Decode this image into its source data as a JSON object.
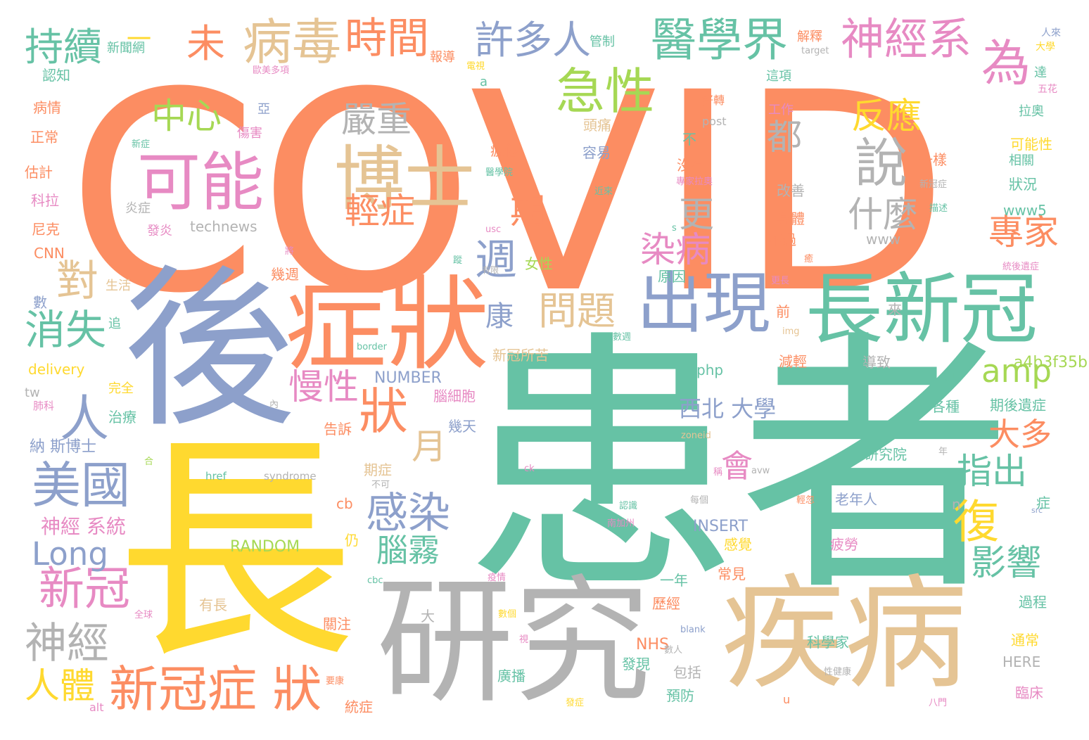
{
  "palette": {
    "orange": "#fc8d62",
    "teal": "#66c2a5",
    "blue": "#8da0cb",
    "pink": "#e78ac3",
    "green": "#a6d854",
    "yellow": "#ffd92f",
    "tan": "#e5c494",
    "gray": "#b3b3b3"
  },
  "words": [
    {
      "text": "COVID",
      "color": "orange"
    },
    {
      "text": "患者",
      "color": "teal"
    },
    {
      "text": "長",
      "color": "yellow"
    },
    {
      "text": "後",
      "color": "blue"
    },
    {
      "text": "研究",
      "color": "gray"
    },
    {
      "text": "疾病",
      "color": "tan"
    },
    {
      "text": "症狀",
      "color": "orange"
    },
    {
      "text": "長新冠",
      "color": "teal"
    },
    {
      "text": "出現",
      "color": "blue"
    },
    {
      "text": "博士",
      "color": "tan"
    },
    {
      "text": "可能",
      "color": "pink"
    },
    {
      "text": "新冠症 狀",
      "color": "orange"
    },
    {
      "text": "病毒",
      "color": "tan"
    },
    {
      "text": "醫學界",
      "color": "teal"
    },
    {
      "text": "神經系",
      "color": "pink"
    },
    {
      "text": "時間",
      "color": "orange"
    },
    {
      "text": "持續",
      "color": "teal"
    },
    {
      "text": "許多人",
      "color": "blue"
    },
    {
      "text": "急性",
      "color": "green"
    },
    {
      "text": "為",
      "color": "pink"
    },
    {
      "text": "說",
      "color": "gray"
    },
    {
      "text": "美國",
      "color": "blue"
    },
    {
      "text": "狀",
      "color": "orange"
    },
    {
      "text": "人",
      "color": "blue"
    },
    {
      "text": "對",
      "color": "tan"
    },
    {
      "text": "消失",
      "color": "teal"
    },
    {
      "text": "新冠",
      "color": "pink"
    },
    {
      "text": "神經",
      "color": "gray"
    },
    {
      "text": "感染",
      "color": "blue"
    },
    {
      "text": "復",
      "color": "yellow"
    },
    {
      "text": "週",
      "color": "blue"
    },
    {
      "text": "問題",
      "color": "tan"
    },
    {
      "text": "未",
      "color": "orange"
    },
    {
      "text": "中心",
      "color": "green"
    },
    {
      "text": "嚴重",
      "color": "gray"
    },
    {
      "text": "輕症",
      "color": "orange"
    },
    {
      "text": "反應",
      "color": "yellow"
    },
    {
      "text": "都",
      "color": "gray"
    },
    {
      "text": "什麼",
      "color": "gray"
    },
    {
      "text": "更",
      "color": "gray"
    },
    {
      "text": "期",
      "color": "orange"
    },
    {
      "text": "專家",
      "color": "orange"
    },
    {
      "text": "染病",
      "color": "pink"
    },
    {
      "text": "慢性",
      "color": "pink"
    },
    {
      "text": "康",
      "color": "blue"
    },
    {
      "text": "amp",
      "color": "green"
    },
    {
      "text": "西北 大學",
      "color": "blue"
    },
    {
      "text": "大多",
      "color": "orange"
    },
    {
      "text": "指出",
      "color": "teal"
    },
    {
      "text": "月",
      "color": "tan"
    },
    {
      "text": "會",
      "color": "pink"
    },
    {
      "text": "影響",
      "color": "teal"
    },
    {
      "text": "Long",
      "color": "blue"
    },
    {
      "text": "人體",
      "color": "yellow"
    },
    {
      "text": "腦霧",
      "color": "teal"
    },
    {
      "text": "一",
      "color": "yellow"
    },
    {
      "text": "新聞網",
      "color": "teal"
    },
    {
      "text": "認知",
      "color": "teal"
    },
    {
      "text": "病情",
      "color": "orange"
    },
    {
      "text": "正常",
      "color": "orange"
    },
    {
      "text": "估計",
      "color": "orange"
    },
    {
      "text": "科拉",
      "color": "pink"
    },
    {
      "text": "尼克",
      "color": "orange"
    },
    {
      "text": "CNN",
      "color": "orange"
    },
    {
      "text": "生活",
      "color": "tan"
    },
    {
      "text": "數",
      "color": "blue"
    },
    {
      "text": "追",
      "color": "teal"
    },
    {
      "text": "delivery",
      "color": "yellow"
    },
    {
      "text": "tw",
      "color": "gray"
    },
    {
      "text": "完全",
      "color": "yellow"
    },
    {
      "text": "治療",
      "color": "teal"
    },
    {
      "text": "肺科",
      "color": "pink"
    },
    {
      "text": "納 斯博士",
      "color": "blue"
    },
    {
      "text": "神經 系統",
      "color": "pink"
    },
    {
      "text": "technews",
      "color": "gray"
    },
    {
      "text": "發炎",
      "color": "pink"
    },
    {
      "text": "炎症",
      "color": "gray"
    },
    {
      "text": "傷害",
      "color": "pink"
    },
    {
      "text": "亞",
      "color": "blue"
    },
    {
      "text": "新症",
      "color": "teal"
    },
    {
      "text": "報導",
      "color": "orange"
    },
    {
      "text": "管制",
      "color": "teal"
    },
    {
      "text": "歐美多項",
      "color": "pink"
    },
    {
      "text": "電視",
      "color": "yellow"
    },
    {
      "text": "a",
      "color": "teal"
    },
    {
      "text": "解釋",
      "color": "orange"
    },
    {
      "text": "target",
      "color": "gray"
    },
    {
      "text": "這項",
      "color": "teal"
    },
    {
      "text": "工作",
      "color": "pink"
    },
    {
      "text": "人來",
      "color": "blue"
    },
    {
      "text": "大學",
      "color": "yellow"
    },
    {
      "text": "達",
      "color": "teal"
    },
    {
      "text": "五花",
      "color": "pink"
    },
    {
      "text": "拉奧",
      "color": "teal"
    },
    {
      "text": "可能性",
      "color": "yellow"
    },
    {
      "text": "相關",
      "color": "teal"
    },
    {
      "text": "狀況",
      "color": "teal"
    },
    {
      "text": "www5",
      "color": "teal"
    },
    {
      "text": "www",
      "color": "gray"
    },
    {
      "text": "疲倦",
      "color": "orange"
    },
    {
      "text": "頭痛",
      "color": "tan"
    },
    {
      "text": "容易",
      "color": "blue"
    },
    {
      "text": "不",
      "color": "teal"
    },
    {
      "text": "好轉",
      "color": "orange"
    },
    {
      "text": "post",
      "color": "gray"
    },
    {
      "text": "沒有",
      "color": "orange"
    },
    {
      "text": "一樣",
      "color": "orange"
    },
    {
      "text": "醫學院",
      "color": "teal"
    },
    {
      "text": "近來",
      "color": "teal"
    },
    {
      "text": "專家拉奧",
      "color": "pink"
    },
    {
      "text": "改善",
      "color": "gray"
    },
    {
      "text": "新冠症",
      "color": "gray"
    },
    {
      "text": "身體",
      "color": "orange"
    },
    {
      "text": "描述",
      "color": "teal"
    },
    {
      "text": "不過",
      "color": "orange"
    },
    {
      "text": "usc",
      "color": "pink"
    },
    {
      "text": "s",
      "color": "teal"
    },
    {
      "text": "原因",
      "color": "teal"
    },
    {
      "text": "女性",
      "color": "green"
    },
    {
      "text": "幾週",
      "color": "orange"
    },
    {
      "text": "有限",
      "color": "gray"
    },
    {
      "text": "蹤",
      "color": "teal"
    },
    {
      "text": "將",
      "color": "pink"
    },
    {
      "text": "癒",
      "color": "orange"
    },
    {
      "text": "更長",
      "color": "pink"
    },
    {
      "text": "統後遺症",
      "color": "pink"
    },
    {
      "text": "前",
      "color": "orange"
    },
    {
      "text": "來",
      "color": "gray"
    },
    {
      "text": "img",
      "color": "tan"
    },
    {
      "text": "數週",
      "color": "teal"
    },
    {
      "text": "border",
      "color": "teal"
    },
    {
      "text": "新冠所苦",
      "color": "tan"
    },
    {
      "text": "減輕",
      "color": "orange"
    },
    {
      "text": "導致",
      "color": "gray"
    },
    {
      "text": "a4b3f35b",
      "color": "green"
    },
    {
      "text": "php",
      "color": "teal"
    },
    {
      "text": "NUMBER",
      "color": "blue"
    },
    {
      "text": "腦細胞",
      "color": "pink"
    },
    {
      "text": "這也",
      "color": "teal"
    },
    {
      "text": "期後遺症",
      "color": "teal"
    },
    {
      "text": "各種",
      "color": "teal"
    },
    {
      "text": "內",
      "color": "gray"
    },
    {
      "text": "告訴",
      "color": "orange"
    },
    {
      "text": "幾天",
      "color": "blue"
    },
    {
      "text": "zoneid",
      "color": "tan"
    },
    {
      "text": "研究院",
      "color": "teal"
    },
    {
      "text": "年",
      "color": "gray"
    },
    {
      "text": "合",
      "color": "green"
    },
    {
      "text": "href",
      "color": "teal"
    },
    {
      "text": "syndrome",
      "color": "gray"
    },
    {
      "text": "ck",
      "color": "pink"
    },
    {
      "text": "avw",
      "color": "gray"
    },
    {
      "text": "稱",
      "color": "pink"
    },
    {
      "text": "期症",
      "color": "tan"
    },
    {
      "text": "不可",
      "color": "gray"
    },
    {
      "text": "每個",
      "color": "gray"
    },
    {
      "text": "老年人",
      "color": "blue"
    },
    {
      "text": "症",
      "color": "teal"
    },
    {
      "text": "src",
      "color": "blue"
    },
    {
      "text": "cb",
      "color": "orange"
    },
    {
      "text": "n",
      "color": "gray"
    },
    {
      "text": "認識",
      "color": "teal"
    },
    {
      "text": "南加州",
      "color": "pink"
    },
    {
      "text": "輕忽",
      "color": "orange"
    },
    {
      "text": "INSERT",
      "color": "blue"
    },
    {
      "text": "RANDOM",
      "color": "green"
    },
    {
      "text": "仍",
      "color": "yellow"
    },
    {
      "text": "感覺",
      "color": "yellow"
    },
    {
      "text": "疲勞",
      "color": "pink"
    },
    {
      "text": "常見",
      "color": "orange"
    },
    {
      "text": "一年",
      "color": "teal"
    },
    {
      "text": "cbc",
      "color": "teal"
    },
    {
      "text": "疫情",
      "color": "pink"
    },
    {
      "text": "有長",
      "color": "tan"
    },
    {
      "text": "大",
      "color": "gray"
    },
    {
      "text": "數個",
      "color": "yellow"
    },
    {
      "text": "歷經",
      "color": "orange"
    },
    {
      "text": "全球",
      "color": "pink"
    },
    {
      "text": "關注",
      "color": "orange"
    },
    {
      "text": "過程",
      "color": "teal"
    },
    {
      "text": "blank",
      "color": "blue"
    },
    {
      "text": "NHS",
      "color": "orange"
    },
    {
      "text": "科學家",
      "color": "teal"
    },
    {
      "text": "通常",
      "color": "yellow"
    },
    {
      "text": "視",
      "color": "pink"
    },
    {
      "text": "數人",
      "color": "gray"
    },
    {
      "text": "發現",
      "color": "teal"
    },
    {
      "text": "包括",
      "color": "gray"
    },
    {
      "text": "HERE",
      "color": "gray"
    },
    {
      "text": "廣播",
      "color": "teal"
    },
    {
      "text": "預防",
      "color": "teal"
    },
    {
      "text": "性健康",
      "color": "gray"
    },
    {
      "text": "臨床",
      "color": "pink"
    },
    {
      "text": "要康",
      "color": "orange"
    },
    {
      "text": "alt",
      "color": "pink"
    },
    {
      "text": "統症",
      "color": "orange"
    },
    {
      "text": "發症",
      "color": "yellow"
    },
    {
      "text": "u",
      "color": "orange"
    },
    {
      "text": "八門",
      "color": "pink"
    }
  ]
}
